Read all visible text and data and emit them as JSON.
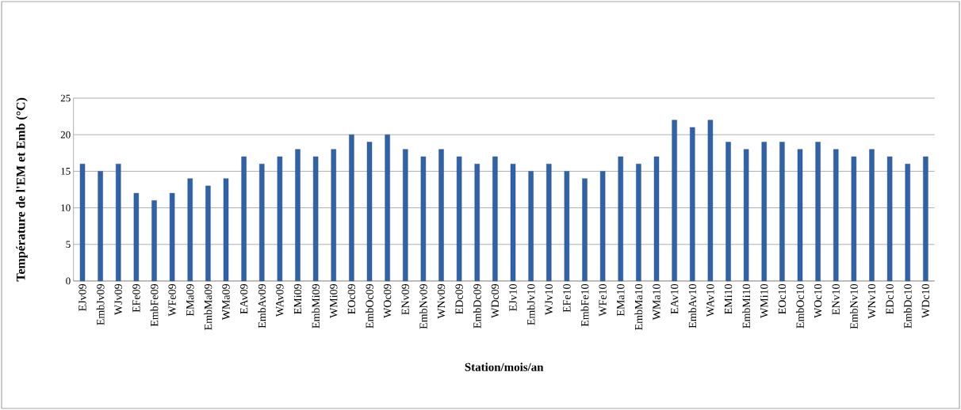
{
  "chart_data": {
    "type": "bar",
    "xlabel": "Station/mois/an",
    "ylabel": "Température de l'EM et Emb (°C)",
    "categories": [
      "EJv09",
      "EmbJv09",
      "WJv09",
      "EFe09",
      "EmbFe09",
      "WFe09",
      "EMa09",
      "EmbMa09",
      "WMa09",
      "EAv09",
      "EmbAv09",
      "WAv09",
      "EMi09",
      "EmbMi09",
      "WMi09",
      "EOc09",
      "EmbOc09",
      "WOc09",
      "ENv09",
      "EmbNv09",
      "WNv09",
      "EDc09",
      "EmbDc09",
      "WDc09",
      "EJv10",
      "EmbJv10",
      "WJv10",
      "EFe10",
      "EmbFe10",
      "WFe10",
      "EMa10",
      "EmbMa10",
      "WMa10",
      "EAv10",
      "EmbAv10",
      "WAv10",
      "EMi10",
      "EmbMi10",
      "WMi10",
      "EOc10",
      "EmbOc10",
      "WOc10",
      "ENv10",
      "EmbNv10",
      "WNv10",
      "EDc10",
      "EmbDc10",
      "WDc10"
    ],
    "values": [
      16,
      15,
      16,
      12,
      11,
      12,
      14,
      13,
      14,
      17,
      16,
      17,
      18,
      17,
      18,
      20,
      19,
      20,
      18,
      17,
      18,
      17,
      16,
      17,
      16,
      15,
      16,
      15,
      14,
      15,
      17,
      16,
      17,
      22,
      21,
      22,
      19,
      18,
      19,
      19,
      18,
      19,
      18,
      17,
      18,
      17,
      16,
      17
    ],
    "color": "#2f62a8",
    "ylim": [
      0,
      25
    ],
    "yticks": [
      0,
      5,
      10,
      15,
      20,
      25
    ],
    "grid": "y"
  }
}
